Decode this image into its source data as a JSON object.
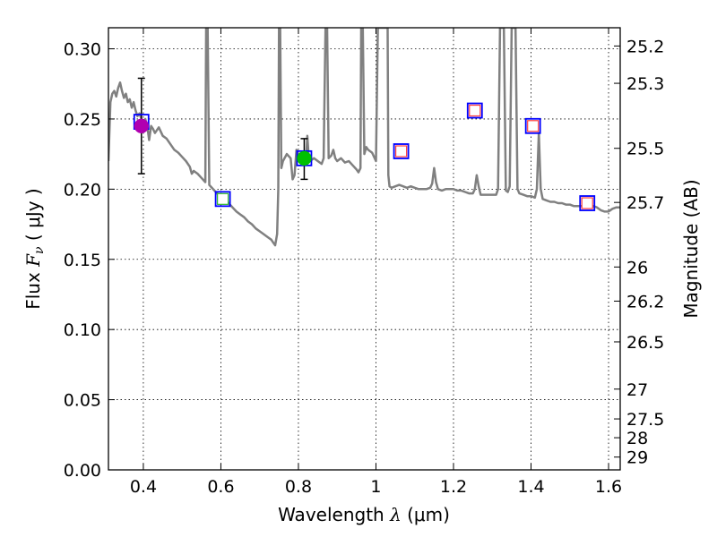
{
  "chart_data": {
    "type": "scatter",
    "title": "",
    "xlabel": "Wavelength  λ (μm)",
    "ylabel": "Flux  F_ν  ( μJy )",
    "ylabel_parts": {
      "prefix": "Flux  ",
      "symbol": "F",
      "subscript": "ν",
      "unit_open": "  ( ",
      "unit": "μJy",
      "unit_close": " )"
    },
    "xlabel_parts": {
      "prefix": "Wavelength  ",
      "symbol": "λ",
      "unit": " (μm)"
    },
    "y2label": "Magnitude (AB)",
    "xlim": [
      0.31,
      1.63
    ],
    "ylim": [
      0.0,
      0.315
    ],
    "xticks": [
      {
        "value": 0.4,
        "label": "0.4"
      },
      {
        "value": 0.6,
        "label": "0.6"
      },
      {
        "value": 0.8,
        "label": "0.8"
      },
      {
        "value": 1.0,
        "label": "1"
      },
      {
        "value": 1.2,
        "label": "1.2"
      },
      {
        "value": 1.4,
        "label": "1.4"
      },
      {
        "value": 1.6,
        "label": "1.6"
      }
    ],
    "yticks": [
      {
        "value": 0.0,
        "label": "0.00"
      },
      {
        "value": 0.05,
        "label": "0.05"
      },
      {
        "value": 0.1,
        "label": "0.10"
      },
      {
        "value": 0.15,
        "label": "0.15"
      },
      {
        "value": 0.2,
        "label": "0.20"
      },
      {
        "value": 0.25,
        "label": "0.25"
      },
      {
        "value": 0.3,
        "label": "0.30"
      }
    ],
    "magnitude_ticks": [
      {
        "mag": 25.2,
        "label": "25.2"
      },
      {
        "mag": 25.3,
        "label": "25.3"
      },
      {
        "mag": 25.5,
        "label": "25.5"
      },
      {
        "mag": 25.7,
        "label": "25.7"
      },
      {
        "mag": 26.0,
        "label": "26"
      },
      {
        "mag": 26.2,
        "label": "26.2"
      },
      {
        "mag": 26.5,
        "label": "26.5"
      },
      {
        "mag": 27.0,
        "label": "27"
      },
      {
        "mag": 27.5,
        "label": "27.5"
      },
      {
        "mag": 28.0,
        "label": "28"
      },
      {
        "mag": 29.0,
        "label": "29"
      }
    ],
    "grid": true,
    "model_spectrum": {
      "color": "#808080",
      "points": [
        [
          0.31,
          0.22
        ],
        [
          0.315,
          0.262
        ],
        [
          0.32,
          0.268
        ],
        [
          0.325,
          0.27
        ],
        [
          0.33,
          0.266
        ],
        [
          0.335,
          0.272
        ],
        [
          0.34,
          0.276
        ],
        [
          0.345,
          0.27
        ],
        [
          0.35,
          0.265
        ],
        [
          0.355,
          0.268
        ],
        [
          0.36,
          0.262
        ],
        [
          0.365,
          0.264
        ],
        [
          0.37,
          0.258
        ],
        [
          0.375,
          0.262
        ],
        [
          0.38,
          0.256
        ],
        [
          0.385,
          0.252
        ],
        [
          0.39,
          0.254
        ],
        [
          0.395,
          0.25
        ],
        [
          0.4,
          0.248
        ],
        [
          0.405,
          0.25
        ],
        [
          0.41,
          0.245
        ],
        [
          0.415,
          0.235
        ],
        [
          0.42,
          0.245
        ],
        [
          0.425,
          0.243
        ],
        [
          0.43,
          0.24
        ],
        [
          0.44,
          0.244
        ],
        [
          0.45,
          0.238
        ],
        [
          0.46,
          0.236
        ],
        [
          0.47,
          0.232
        ],
        [
          0.48,
          0.228
        ],
        [
          0.49,
          0.226
        ],
        [
          0.5,
          0.223
        ],
        [
          0.51,
          0.22
        ],
        [
          0.52,
          0.216
        ],
        [
          0.525,
          0.211
        ],
        [
          0.53,
          0.213
        ],
        [
          0.54,
          0.211
        ],
        [
          0.55,
          0.208
        ],
        [
          0.56,
          0.205
        ],
        [
          0.562,
          0.315
        ],
        [
          0.566,
          0.315
        ],
        [
          0.57,
          0.203
        ],
        [
          0.58,
          0.2
        ],
        [
          0.59,
          0.197
        ],
        [
          0.6,
          0.195
        ],
        [
          0.61,
          0.193
        ],
        [
          0.62,
          0.19
        ],
        [
          0.63,
          0.187
        ],
        [
          0.64,
          0.184
        ],
        [
          0.65,
          0.182
        ],
        [
          0.66,
          0.18
        ],
        [
          0.67,
          0.177
        ],
        [
          0.68,
          0.175
        ],
        [
          0.69,
          0.172
        ],
        [
          0.7,
          0.17
        ],
        [
          0.71,
          0.168
        ],
        [
          0.72,
          0.166
        ],
        [
          0.73,
          0.164
        ],
        [
          0.735,
          0.162
        ],
        [
          0.74,
          0.16
        ],
        [
          0.745,
          0.168
        ],
        [
          0.748,
          0.2
        ],
        [
          0.75,
          0.315
        ],
        [
          0.753,
          0.315
        ],
        [
          0.756,
          0.215
        ],
        [
          0.76,
          0.22
        ],
        [
          0.77,
          0.225
        ],
        [
          0.78,
          0.222
        ],
        [
          0.785,
          0.207
        ],
        [
          0.79,
          0.21
        ],
        [
          0.795,
          0.228
        ],
        [
          0.8,
          0.225
        ],
        [
          0.81,
          0.222
        ],
        [
          0.815,
          0.22
        ],
        [
          0.82,
          0.222
        ],
        [
          0.823,
          0.238
        ],
        [
          0.826,
          0.225
        ],
        [
          0.83,
          0.22
        ],
        [
          0.84,
          0.222
        ],
        [
          0.85,
          0.22
        ],
        [
          0.86,
          0.218
        ],
        [
          0.865,
          0.222
        ],
        [
          0.87,
          0.315
        ],
        [
          0.874,
          0.315
        ],
        [
          0.878,
          0.222
        ],
        [
          0.885,
          0.224
        ],
        [
          0.89,
          0.228
        ],
        [
          0.895,
          0.222
        ],
        [
          0.9,
          0.22
        ],
        [
          0.91,
          0.222
        ],
        [
          0.92,
          0.219
        ],
        [
          0.93,
          0.22
        ],
        [
          0.94,
          0.217
        ],
        [
          0.95,
          0.214
        ],
        [
          0.955,
          0.212
        ],
        [
          0.96,
          0.215
        ],
        [
          0.962,
          0.315
        ],
        [
          0.966,
          0.315
        ],
        [
          0.97,
          0.225
        ],
        [
          0.975,
          0.23
        ],
        [
          0.98,
          0.228
        ],
        [
          0.99,
          0.226
        ],
        [
          1.0,
          0.22
        ],
        [
          1.005,
          0.315
        ],
        [
          1.03,
          0.315
        ],
        [
          1.032,
          0.21
        ],
        [
          1.035,
          0.202
        ],
        [
          1.04,
          0.201
        ],
        [
          1.05,
          0.202
        ],
        [
          1.06,
          0.203
        ],
        [
          1.07,
          0.202
        ],
        [
          1.08,
          0.201
        ],
        [
          1.09,
          0.202
        ],
        [
          1.1,
          0.201
        ],
        [
          1.11,
          0.2
        ],
        [
          1.12,
          0.2
        ],
        [
          1.13,
          0.2
        ],
        [
          1.14,
          0.201
        ],
        [
          1.145,
          0.204
        ],
        [
          1.15,
          0.215
        ],
        [
          1.155,
          0.205
        ],
        [
          1.16,
          0.2
        ],
        [
          1.17,
          0.199
        ],
        [
          1.18,
          0.2
        ],
        [
          1.19,
          0.2
        ],
        [
          1.2,
          0.2
        ],
        [
          1.21,
          0.199
        ],
        [
          1.22,
          0.199
        ],
        [
          1.23,
          0.198
        ],
        [
          1.24,
          0.197
        ],
        [
          1.25,
          0.197
        ],
        [
          1.255,
          0.2
        ],
        [
          1.26,
          0.21
        ],
        [
          1.265,
          0.202
        ],
        [
          1.27,
          0.196
        ],
        [
          1.28,
          0.196
        ],
        [
          1.29,
          0.196
        ],
        [
          1.3,
          0.196
        ],
        [
          1.31,
          0.196
        ],
        [
          1.315,
          0.2
        ],
        [
          1.32,
          0.315
        ],
        [
          1.33,
          0.315
        ],
        [
          1.335,
          0.199
        ],
        [
          1.34,
          0.198
        ],
        [
          1.345,
          0.202
        ],
        [
          1.35,
          0.315
        ],
        [
          1.36,
          0.315
        ],
        [
          1.365,
          0.2
        ],
        [
          1.37,
          0.197
        ],
        [
          1.38,
          0.196
        ],
        [
          1.39,
          0.195
        ],
        [
          1.4,
          0.195
        ],
        [
          1.41,
          0.194
        ],
        [
          1.415,
          0.2
        ],
        [
          1.42,
          0.24
        ],
        [
          1.425,
          0.2
        ],
        [
          1.43,
          0.193
        ],
        [
          1.44,
          0.192
        ],
        [
          1.45,
          0.191
        ],
        [
          1.46,
          0.191
        ],
        [
          1.47,
          0.19
        ],
        [
          1.48,
          0.19
        ],
        [
          1.49,
          0.189
        ],
        [
          1.5,
          0.189
        ],
        [
          1.51,
          0.188
        ],
        [
          1.52,
          0.188
        ],
        [
          1.53,
          0.188
        ],
        [
          1.54,
          0.188
        ],
        [
          1.55,
          0.187
        ],
        [
          1.56,
          0.188
        ],
        [
          1.57,
          0.187
        ],
        [
          1.58,
          0.185
        ],
        [
          1.59,
          0.184
        ],
        [
          1.6,
          0.184
        ],
        [
          1.61,
          0.186
        ],
        [
          1.62,
          0.187
        ],
        [
          1.63,
          0.187
        ]
      ]
    },
    "model_boxes": {
      "name": "model photometry",
      "edge_color": "#0000ff",
      "points": [
        {
          "x": 0.395,
          "y": 0.248
        },
        {
          "x": 0.605,
          "y": 0.193
        },
        {
          "x": 0.815,
          "y": 0.222
        },
        {
          "x": 1.065,
          "y": 0.227
        },
        {
          "x": 1.255,
          "y": 0.256
        },
        {
          "x": 1.405,
          "y": 0.245
        },
        {
          "x": 1.545,
          "y": 0.19
        }
      ]
    },
    "photometry_squares": {
      "points": [
        {
          "x": 0.605,
          "y": 0.193,
          "color": "#2fb52f"
        },
        {
          "x": 1.065,
          "y": 0.227,
          "color": "#ff4040"
        },
        {
          "x": 1.255,
          "y": 0.256,
          "color": "#ff4040"
        },
        {
          "x": 1.405,
          "y": 0.245,
          "color": "#ff4040"
        },
        {
          "x": 1.545,
          "y": 0.19,
          "color": "#ff4040"
        }
      ]
    },
    "detections": {
      "points": [
        {
          "x": 0.395,
          "y": 0.245,
          "yerr_low": 0.211,
          "yerr_high": 0.279,
          "color": "#b000b0"
        },
        {
          "x": 0.815,
          "y": 0.222,
          "yerr_low": 0.207,
          "yerr_high": 0.236,
          "color": "#00c000"
        }
      ]
    }
  }
}
